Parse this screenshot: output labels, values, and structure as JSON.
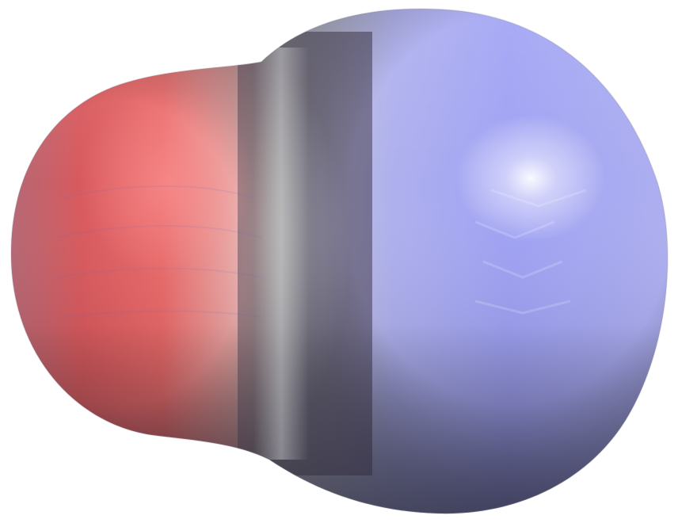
{
  "scene": {
    "background": "#ffffff",
    "subject": "electrostatic-potential-surface",
    "palette": {
      "negative": "#e04a4a",
      "neutral": "#d9d9d6",
      "positive": "#9a9cf2",
      "shadow": "#5a5a5e",
      "highlight": "#ffffff"
    }
  }
}
